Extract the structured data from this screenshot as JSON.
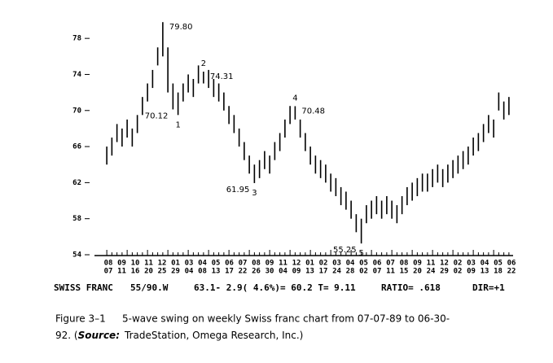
{
  "chart_data": {
    "type": "price_bar",
    "ylim": [
      54,
      80
    ],
    "yticks": [
      54,
      58,
      62,
      66,
      70,
      74,
      78
    ],
    "color": "#000000",
    "high": [
      66,
      67,
      68.5,
      68,
      69,
      68,
      69.5,
      71.5,
      73,
      74.5,
      77,
      79.8,
      77,
      73,
      72,
      73,
      74,
      73.5,
      75,
      74.31,
      74.5,
      73.5,
      73,
      72,
      70.5,
      69.5,
      68,
      66.5,
      65,
      64,
      64.5,
      65.5,
      65,
      66.5,
      67.5,
      69,
      70.5,
      70.48,
      69,
      67.5,
      66,
      65,
      64.5,
      64,
      63,
      62.5,
      61.5,
      61,
      60,
      58.5,
      58,
      59.5,
      60,
      60.5,
      60,
      60.5,
      60,
      59.5,
      60.5,
      61.5,
      62,
      62.5,
      63,
      63,
      63.5,
      64,
      63.5,
      64,
      64.5,
      65,
      65.5,
      66,
      67,
      67.5,
      68.5,
      69.5,
      69,
      72,
      71,
      71.5
    ],
    "low": [
      64,
      65,
      66.5,
      66,
      67,
      66,
      67.5,
      69.5,
      71,
      72.5,
      75,
      76,
      72,
      70.12,
      69.5,
      71,
      72,
      71.5,
      73,
      73,
      72.5,
      71.5,
      71,
      70,
      68.5,
      67.5,
      66,
      64.5,
      63,
      61.95,
      62.5,
      63.5,
      63,
      64.5,
      65.5,
      67,
      68.5,
      69,
      67,
      65.5,
      64,
      63,
      62.5,
      62,
      61,
      60.5,
      59.5,
      59,
      58,
      56.5,
      55.25,
      57.5,
      58,
      58.5,
      58,
      58.5,
      58,
      57.5,
      58.5,
      59.5,
      60,
      60.5,
      61,
      61,
      61.5,
      62,
      61.5,
      62,
      62.5,
      63,
      63.5,
      64,
      65,
      65.5,
      66.5,
      67.5,
      67,
      70,
      69,
      69.5
    ],
    "x_labels": {
      "month": [
        "08",
        "09",
        "10",
        "11",
        "12",
        "01",
        "03",
        "04",
        "05",
        "06",
        "07",
        "08",
        "09",
        "11",
        "12",
        "01",
        "02",
        "03",
        "04",
        "05",
        "06",
        "07",
        "08",
        "09",
        "11",
        "12",
        "02",
        "03",
        "04",
        "05",
        "06"
      ],
      "day": [
        "07",
        "11",
        "16",
        "20",
        "25",
        "29",
        "04",
        "08",
        "13",
        "17",
        "22",
        "26",
        "30",
        "04",
        "09",
        "13",
        "17",
        "24",
        "28",
        "02",
        "07",
        "11",
        "15",
        "20",
        "24",
        "29",
        "02",
        "09",
        "13",
        "18",
        "22"
      ]
    },
    "annotations": [
      {
        "text": "79.80",
        "bar": 11,
        "y": 79.8
      },
      {
        "text": "70.12",
        "bar": 13,
        "y": 70.12
      },
      {
        "text": "1",
        "bar": 14,
        "y": 69.5
      },
      {
        "text": "2",
        "bar": 19,
        "y": 74.31
      },
      {
        "text": "74.31",
        "bar": 19,
        "y": 74.31
      },
      {
        "text": "61.95",
        "bar": 29,
        "y": 61.95
      },
      {
        "text": "3",
        "bar": 29,
        "y": 61.95
      },
      {
        "text": "4",
        "bar": 37,
        "y": 70.48
      },
      {
        "text": "70.48",
        "bar": 37,
        "y": 70.48
      },
      {
        "text": "55.25",
        "bar": 50,
        "y": 55.25
      },
      {
        "text": "5",
        "bar": 50,
        "y": 55.25
      }
    ],
    "status_line": [
      "SWISS FRANC",
      "55/90.W",
      "63.1- 2.9( 4.6%)= 60.2 T= 9.11",
      "RATIO= .618",
      "DIR=+1"
    ]
  },
  "caption": {
    "label": "Figure 3–1",
    "text": "5-wave swing on weekly Swiss franc chart from 07-07-89 to 06-30-",
    "text2": "92. (",
    "source_label": "Source:",
    "source": "TradeStation, Omega Research, Inc.)"
  }
}
